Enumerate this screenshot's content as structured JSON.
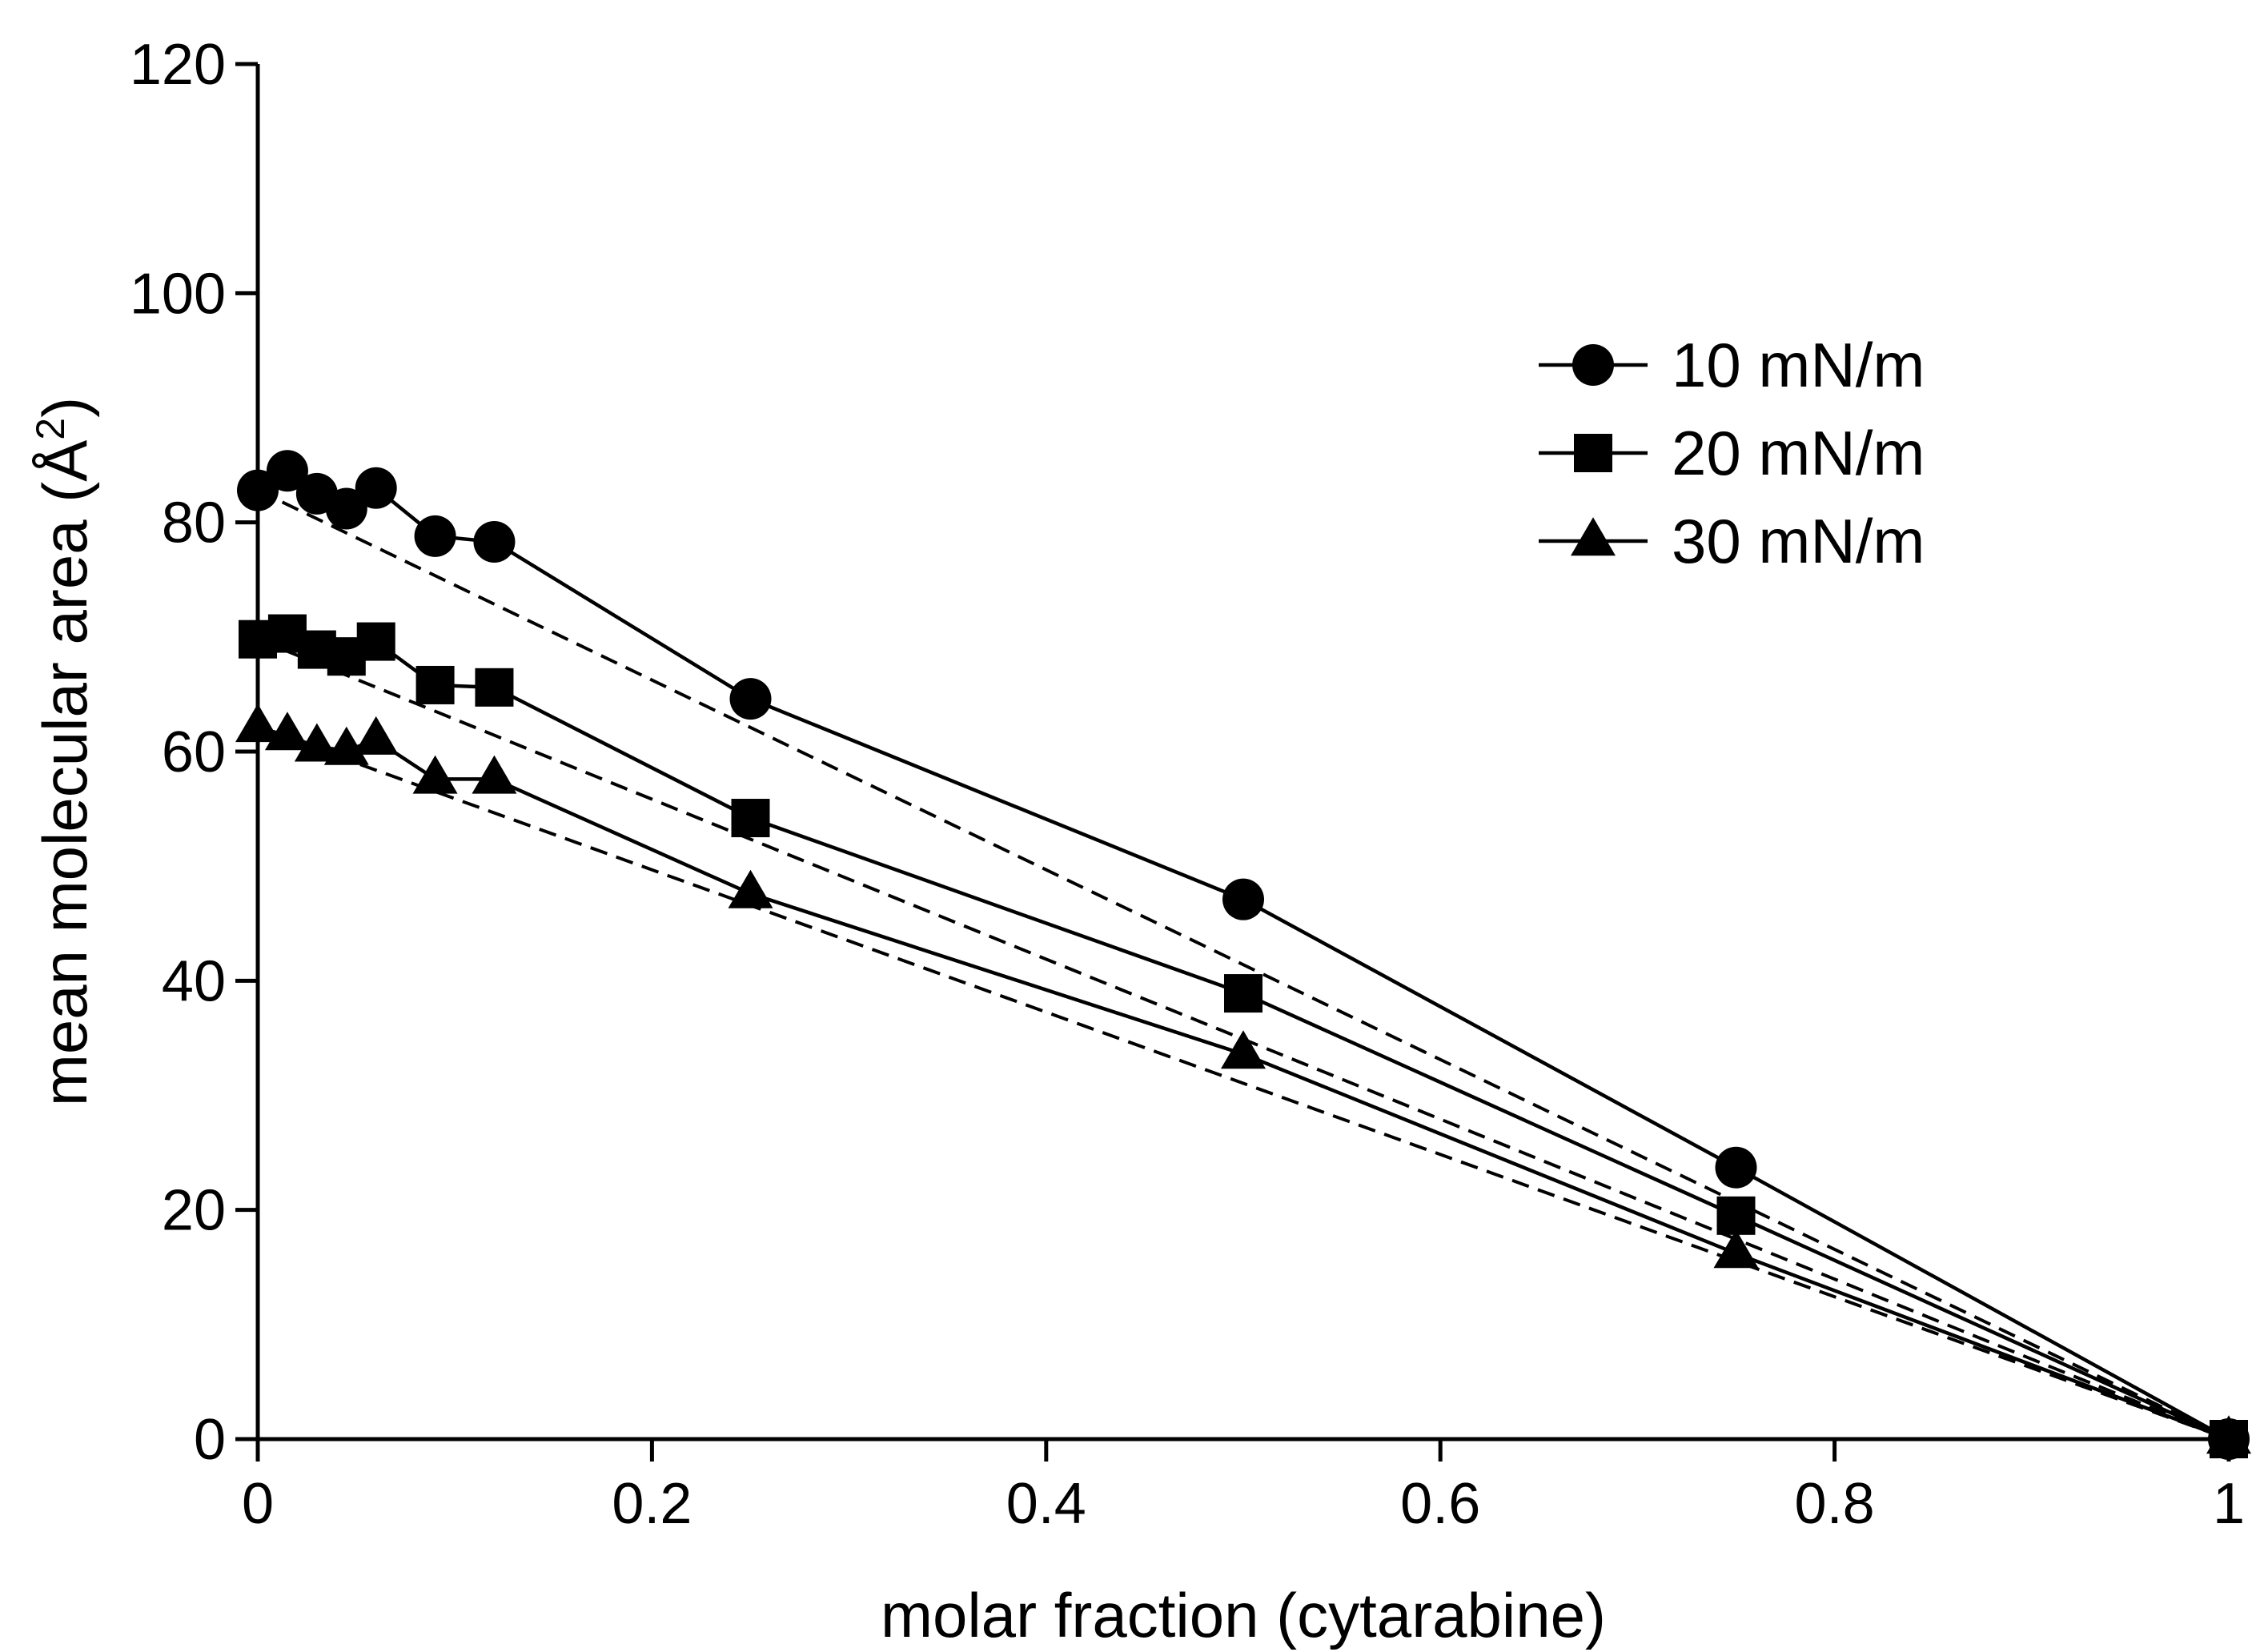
{
  "chart_data": {
    "type": "line",
    "title": "",
    "xlabel": "molar fraction (cytarabine)",
    "ylabel_main": "mean molecular area (Å",
    "ylabel_sup": "2",
    "ylabel_close": ")",
    "xlim": [
      0,
      1
    ],
    "ylim": [
      0,
      120
    ],
    "xticks": [
      0,
      0.2,
      0.4,
      0.6,
      0.8,
      1
    ],
    "xtick_labels": [
      "0",
      "0.2",
      "0.4",
      "0.6",
      "0.8",
      "1"
    ],
    "yticks": [
      0,
      20,
      40,
      60,
      80,
      100,
      120
    ],
    "ytick_labels": [
      "0",
      "20",
      "40",
      "60",
      "80",
      "100",
      "120"
    ],
    "grid": false,
    "legend_position": "top-right",
    "x": [
      0,
      0.015,
      0.03,
      0.045,
      0.06,
      0.09,
      0.12,
      0.25,
      0.5,
      0.75,
      1
    ],
    "series": [
      {
        "name": "10 mN/m",
        "marker": "circle",
        "values": [
          82.8,
          84.5,
          82.5,
          81.2,
          83.0,
          78.8,
          78.3,
          64.6,
          47.1,
          23.7,
          0
        ],
        "ideal_line": [
          [
            0,
            82.8
          ],
          [
            1,
            0
          ]
        ]
      },
      {
        "name": "20 mN/m",
        "marker": "square",
        "values": [
          69.8,
          70.3,
          68.9,
          68.3,
          69.6,
          65.8,
          65.6,
          54.2,
          38.9,
          19.5,
          0
        ],
        "ideal_line": [
          [
            0,
            69.8
          ],
          [
            1,
            0
          ]
        ]
      },
      {
        "name": "30 mN/m",
        "marker": "triangle",
        "values": [
          62.1,
          61.4,
          60.4,
          60.1,
          61.0,
          57.6,
          57.6,
          47.6,
          33.6,
          16.2,
          0
        ],
        "ideal_line": [
          [
            0,
            62.1
          ],
          [
            1,
            0
          ]
        ]
      }
    ]
  }
}
